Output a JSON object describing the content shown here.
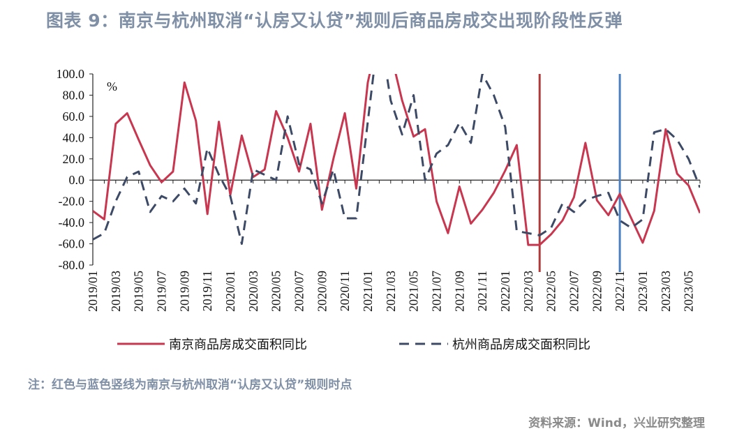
{
  "title": "图表 9：南京与杭州取消“认房又认贷”规则后商品房成交出现阶段性反弹",
  "note": "注：红色与蓝色竖线为南京与杭州取消“认房又认贷”规则时点",
  "source": "资料来源：Wind，兴业研究整理",
  "chart_data": {
    "type": "line",
    "unit_label": "%",
    "ylim": [
      -80,
      100
    ],
    "yticks": [
      "100.0",
      "80.0",
      "60.0",
      "40.0",
      "20.0",
      "0.0",
      "-20.0",
      "-40.0",
      "-60.0",
      "-80.0"
    ],
    "x": [
      "2019/01",
      "2019/02",
      "2019/03",
      "2019/04",
      "2019/05",
      "2019/06",
      "2019/07",
      "2019/08",
      "2019/09",
      "2019/10",
      "2019/11",
      "2019/12",
      "2020/01",
      "2020/02",
      "2020/03",
      "2020/04",
      "2020/05",
      "2020/06",
      "2020/07",
      "2020/08",
      "2020/09",
      "2020/10",
      "2020/11",
      "2020/12",
      "2021/01",
      "2021/02",
      "2021/03",
      "2021/04",
      "2021/05",
      "2021/06",
      "2021/07",
      "2021/08",
      "2021/09",
      "2021/10",
      "2021/11",
      "2021/12",
      "2022/01",
      "2022/02",
      "2022/03",
      "2022/04",
      "2022/05",
      "2022/06",
      "2022/07",
      "2022/08",
      "2022/09",
      "2022/10",
      "2022/11",
      "2022/12",
      "2023/01",
      "2023/02",
      "2023/03",
      "2023/04",
      "2023/05",
      "2023/06"
    ],
    "xtick_labels": [
      "2019/01",
      "2019/03",
      "2019/05",
      "2019/07",
      "2019/09",
      "2019/11",
      "2020/01",
      "2020/03",
      "2020/05",
      "2020/07",
      "2020/09",
      "2020/11",
      "2021/01",
      "2021/03",
      "2021/05",
      "2021/07",
      "2021/09",
      "2021/11",
      "2022/01",
      "2022/03",
      "2022/05",
      "2022/07",
      "2022/09",
      "2022/11",
      "2023/01",
      "2023/03",
      "2023/05"
    ],
    "series": [
      {
        "name": "南京商品房成交面积同比",
        "color": "#c8374f",
        "style": "solid",
        "values": [
          -29,
          -37,
          53,
          63,
          38,
          14,
          -2,
          8,
          92,
          56,
          -32,
          55,
          -14,
          42,
          3,
          10,
          65,
          40,
          8,
          53,
          -28,
          20,
          63,
          -8,
          92,
          140,
          120,
          75,
          41,
          48,
          -20,
          -50,
          -6,
          -41,
          -28,
          -12,
          9,
          33,
          -61,
          -61,
          -51,
          -38,
          -16,
          35,
          -19,
          -33,
          -13,
          -36,
          -59,
          -29,
          48,
          6,
          -5,
          -31
        ]
      },
      {
        "name": "杭州商品房成交面积同比",
        "color": "#3d4a66",
        "style": "dashed",
        "values": [
          -56,
          -50,
          -20,
          3,
          8,
          -30,
          -15,
          -20,
          -8,
          -22,
          30,
          5,
          -15,
          -60,
          10,
          5,
          0,
          60,
          15,
          10,
          -22,
          10,
          -36,
          -36,
          55,
          145,
          75,
          43,
          80,
          0,
          25,
          33,
          54,
          35,
          100,
          80,
          50,
          -48,
          -50,
          -52,
          -45,
          -22,
          -30,
          -19,
          -15,
          -12,
          -38,
          -45,
          -37,
          45,
          48,
          38,
          20,
          -7
        ]
      }
    ],
    "markers": [
      {
        "x": "2022/04",
        "color": "#b03a38"
      },
      {
        "x": "2022/11",
        "color": "#4a7fc1"
      }
    ],
    "legend_position": "bottom"
  }
}
